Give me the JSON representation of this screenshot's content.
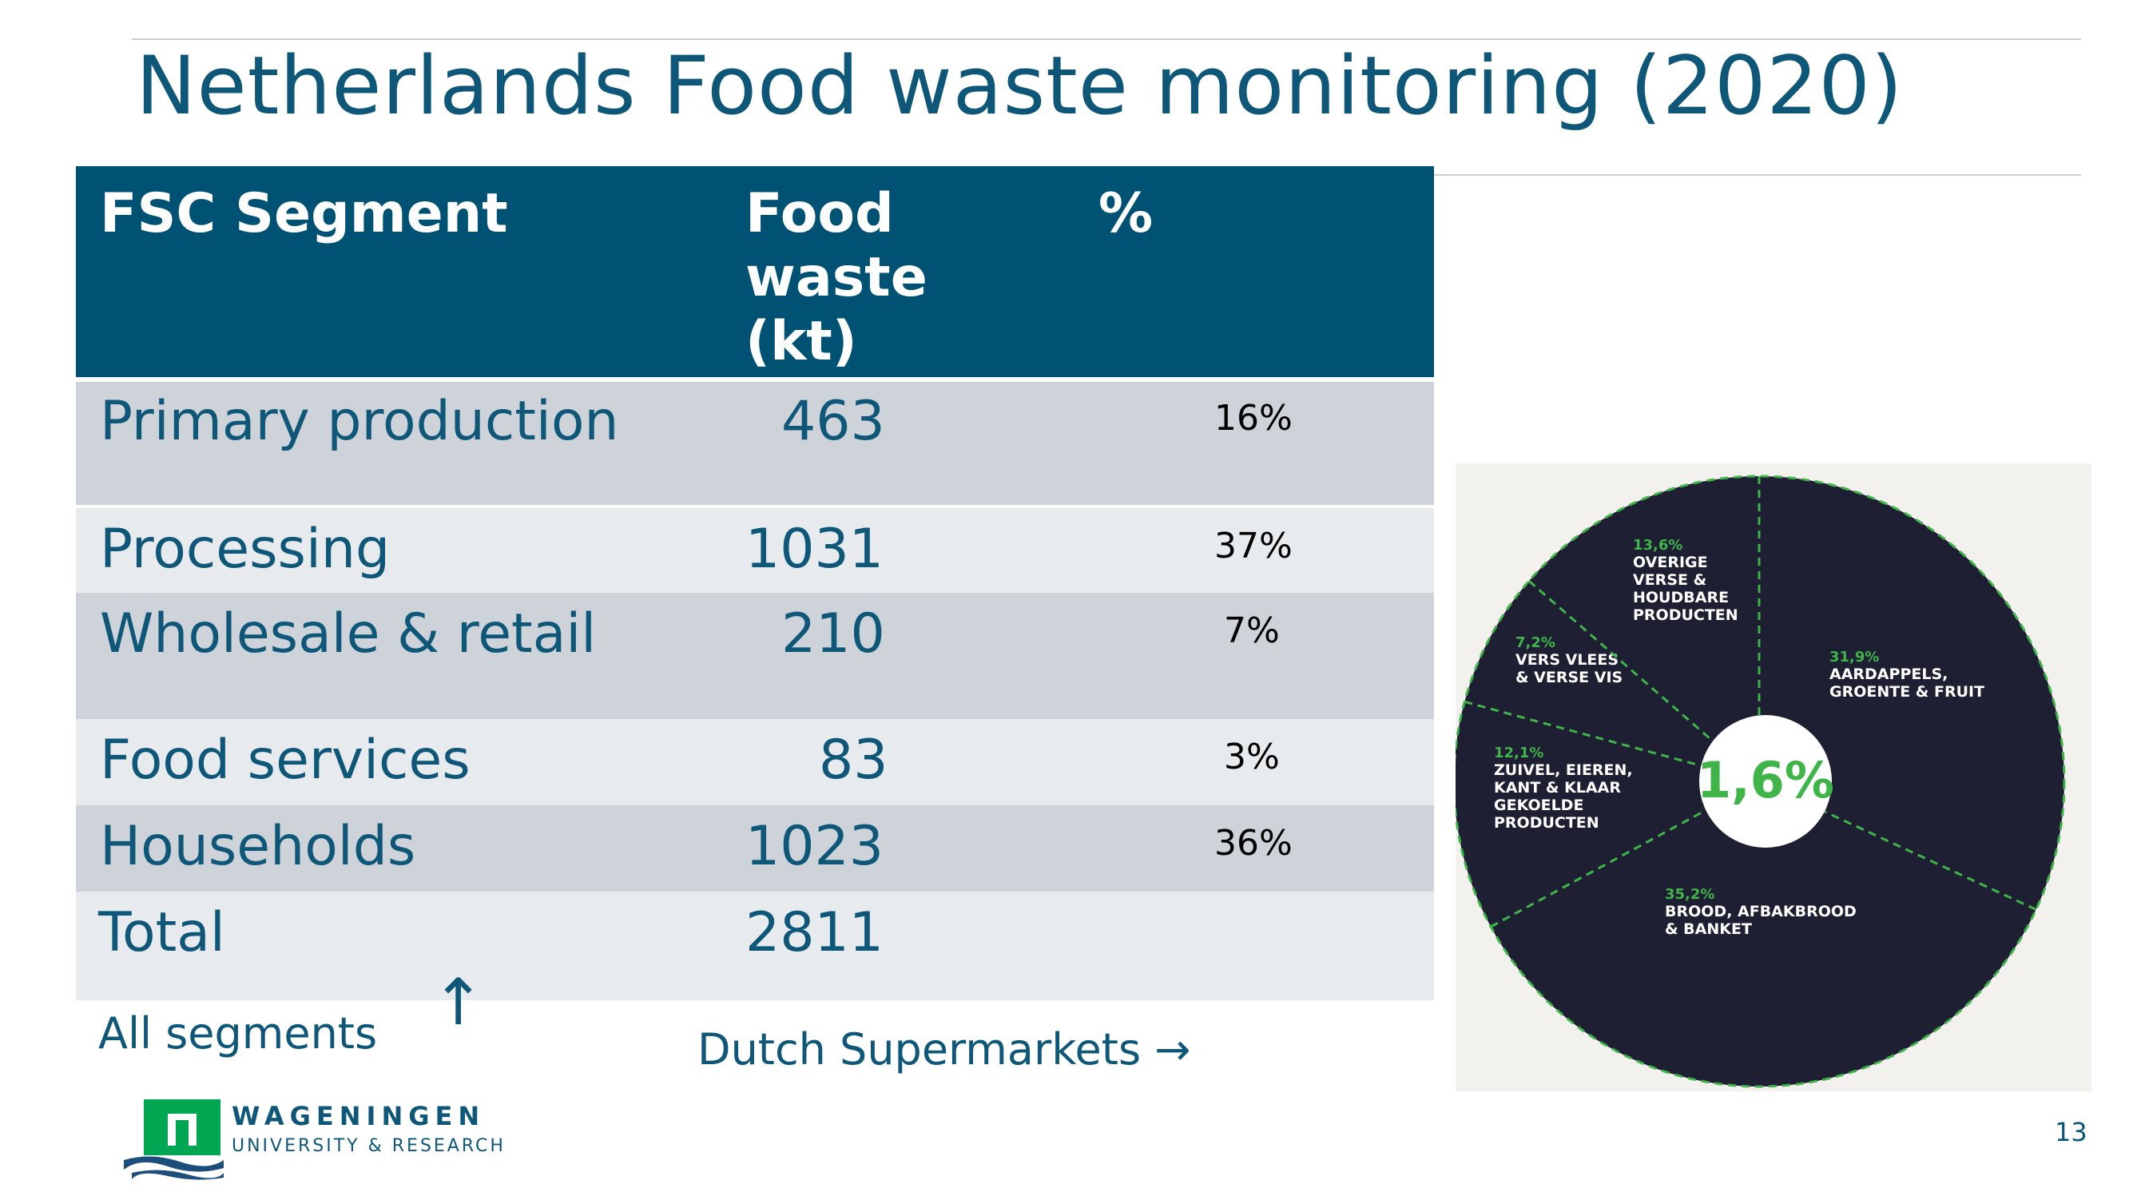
{
  "title": "Netherlands Food waste monitoring (2020)",
  "table": {
    "headers": {
      "segment": "FSC Segment",
      "food_waste": [
        "Food",
        "waste",
        "(kt)"
      ],
      "percent": "%"
    },
    "rows": [
      {
        "segment": "Primary production",
        "value": "463",
        "percent": "16%"
      },
      {
        "segment": "Processing",
        "value": "1031",
        "percent": "37%"
      },
      {
        "segment": "Wholesale & retail",
        "value": "210",
        "percent": "7%"
      },
      {
        "segment": "Food services",
        "value": "83",
        "percent": "3%"
      },
      {
        "segment": "Households",
        "value": "1023",
        "percent": "36%"
      },
      {
        "segment": "Total",
        "value": "2811",
        "percent": ""
      }
    ]
  },
  "notes": {
    "all_segments": "All segments",
    "arrow_up": "↑",
    "dutch_supermarkets": "Dutch Supermarkets →"
  },
  "logo": {
    "line1": "WAGENINGEN",
    "line2": "UNIVERSITY & RESEARCH",
    "color": "#00a651"
  },
  "page_number": "13",
  "chart_data": {
    "type": "pie",
    "center_label": "1,6%",
    "slices": [
      {
        "value_label": "31,9%",
        "name_lines": [
          "AARDAPPELS,",
          "GROENTE & FRUIT"
        ],
        "value": 31.9
      },
      {
        "value_label": "35,2%",
        "name_lines": [
          "BROOD, AFBAKBROOD",
          "& BANKET"
        ],
        "value": 35.2
      },
      {
        "value_label": "12,1%",
        "name_lines": [
          "ZUIVEL, EIEREN,",
          "KANT & KLAAR",
          "GEKOELDE",
          "PRODUCTEN"
        ],
        "value": 12.1
      },
      {
        "value_label": "7,2%",
        "name_lines": [
          "VERS VLEES",
          "& VERSE VIS"
        ],
        "value": 7.2
      },
      {
        "value_label": "13,6%",
        "name_lines": [
          "OVERIGE",
          "VERSE &",
          "HOUDBARE",
          "PRODUCTEN"
        ],
        "value": 13.6
      }
    ],
    "colors": {
      "fill": "#1e1f33",
      "divider": "#3fb549",
      "label_value": "#3fb549",
      "label_text": "#ffffff",
      "center": "#ffffff"
    }
  }
}
